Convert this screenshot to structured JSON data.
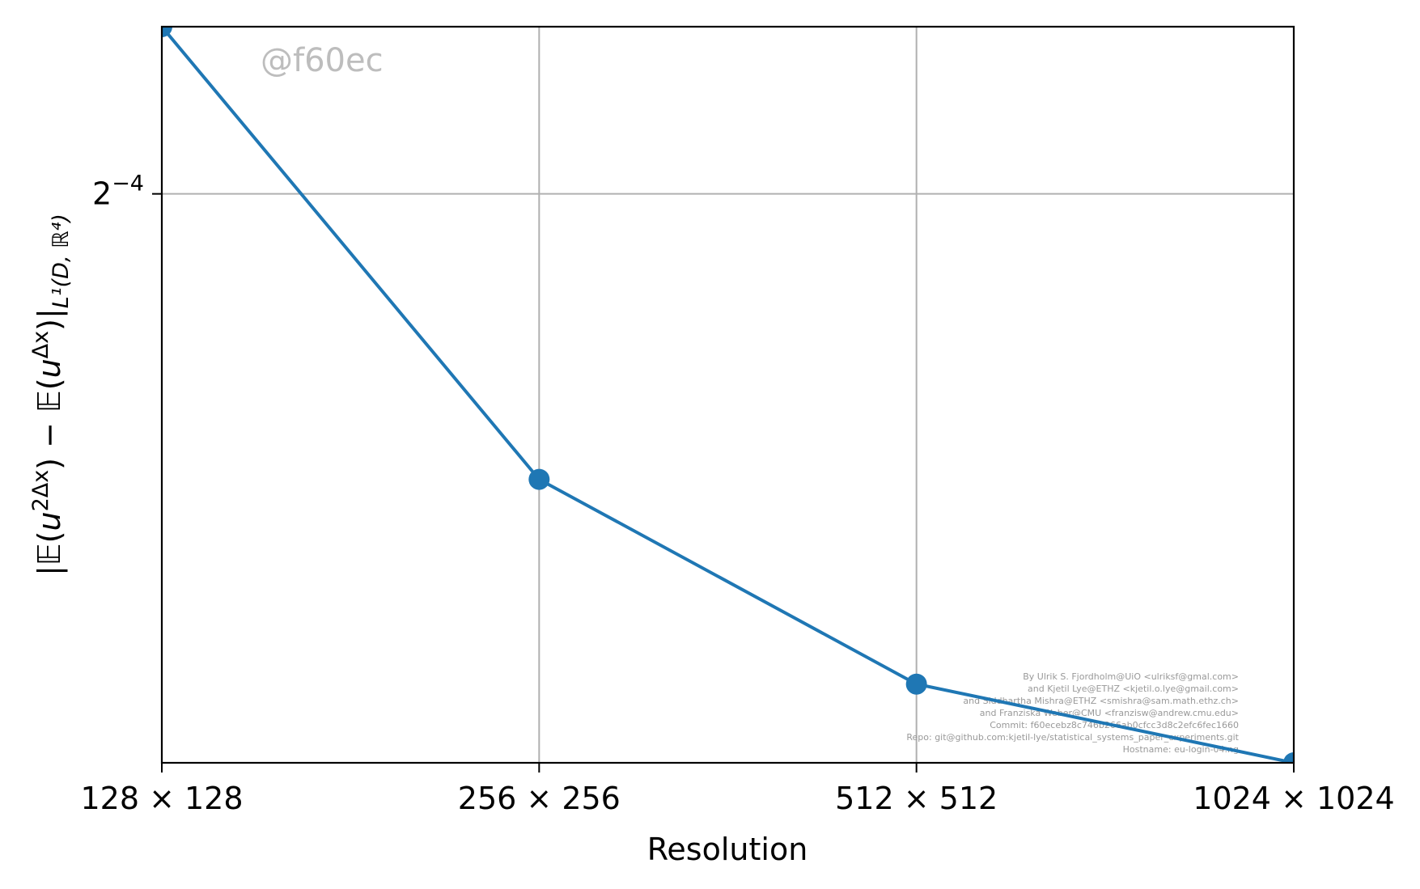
{
  "chart_data": {
    "type": "line",
    "categories": [
      "128×128",
      "256×256",
      "512×512",
      "1024×1024"
    ],
    "x_tick_labels": [
      "128 × 128",
      "256 × 256",
      "512 × 512",
      "1024 × 1024"
    ],
    "x_scale": "log2",
    "y_scale": "log2",
    "series": [
      {
        "values": [
          0.083,
          0.0385,
          0.0272,
          0.0238
        ],
        "color": "#1f77b4",
        "marker": "circle"
      }
    ],
    "ylim": [
      0.0238,
      0.083
    ],
    "y_ticks": [
      {
        "value": 0.0625,
        "base": "2",
        "exponent": "−4"
      }
    ],
    "xlabel": "Resolution",
    "ylabel": "|𝔼(u^{2Δx}) − 𝔼(u^{Δx})|_{L¹(D, ℝ⁴)}",
    "ylabel_parts": {
      "bar_open": "|",
      "E1": "𝔼",
      "paren_open_1": "(",
      "u1": "u",
      "sup1": "2Δx",
      "paren_close_1": ")",
      "minus": " − ",
      "E2": "𝔼",
      "paren_open_2": "(",
      "u2": "u",
      "sup2": "Δx",
      "paren_close_2": ")",
      "bar_close": "|",
      "sub": "L¹(D, ℝ⁴)"
    },
    "grid": true,
    "legend": "none",
    "watermark": "@f60ec",
    "credits": [
      "By Ulrik S. Fjordholm@UiO <ulriksf@gmal.com>",
      "and Kjetil Lye@ETHZ <kjetil.o.lye@gmail.com>",
      "and Siddhartha Mishra@ETHZ <smishra@sam.math.ethz.ch>",
      "and Franziska Weber@CMU <franzisw@andrew.cmu.edu>",
      "Commit: f60ecebz8c746b266ab0cfcc3d8c2efc6fec1660",
      "Repo: git@github.com:kjetil-lye/statistical_systems_paper_experiments.git",
      "Hostname: eu-login-04.ng"
    ]
  }
}
